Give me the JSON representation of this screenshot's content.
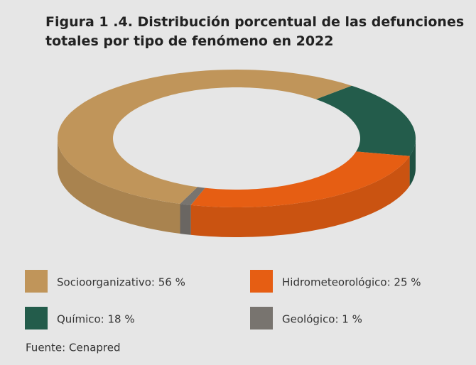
{
  "chart_data": {
    "type": "donut",
    "title": "Figura 1 .4.  Distribución porcentual de las defunciones totales por tipo de fenómeno en 2022",
    "value_labels": [
      "Socioorganizativo: 56 %",
      "Hidrometeorológico: 25 %",
      "Químico: 18 %",
      "Geológico: 1 %"
    ],
    "values": [
      56,
      25,
      18,
      1
    ],
    "colors": [
      "#c0955a",
      "#e65e13",
      "#235c4b",
      "#78746f"
    ],
    "source": "Fuente: Cenapred"
  }
}
